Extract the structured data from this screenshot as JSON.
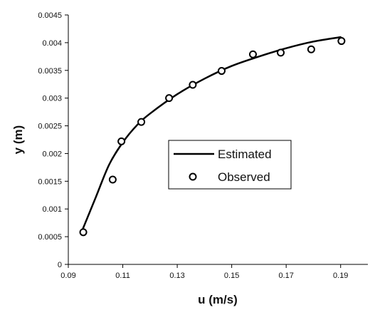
{
  "chart_data": {
    "type": "line",
    "title": "",
    "xlabel": "u (m/s)",
    "ylabel": "y (m)",
    "xlim": [
      0.09,
      0.2
    ],
    "ylim": [
      0,
      0.0045
    ],
    "x_ticks": [
      "0.09",
      "0.11",
      "0.13",
      "0.15",
      "0.17",
      "0.19"
    ],
    "y_ticks": [
      "0",
      "0.0005",
      "0.001",
      "0.0015",
      "0.002",
      "0.0025",
      "0.003",
      "0.0035",
      "0.004",
      "0.0045"
    ],
    "grid": false,
    "legend_position": "center-right",
    "series": [
      {
        "name": "Estimated",
        "kind": "line",
        "color": "#000000",
        "x": [
          0.095,
          0.1,
          0.105,
          0.11,
          0.115,
          0.12,
          0.13,
          0.14,
          0.15,
          0.16,
          0.17,
          0.18,
          0.19
        ],
        "y": [
          0.0006,
          0.0012,
          0.0018,
          0.0022,
          0.0025,
          0.00272,
          0.00307,
          0.00335,
          0.00358,
          0.00375,
          0.0039,
          0.00402,
          0.0041
        ]
      },
      {
        "name": "Observed",
        "kind": "scatter",
        "color": "#000000",
        "x": [
          0.0955,
          0.1063,
          0.1095,
          0.1168,
          0.127,
          0.1357,
          0.1463,
          0.1578,
          0.168,
          0.1792,
          0.1903
        ],
        "y": [
          0.00058,
          0.00153,
          0.00222,
          0.00257,
          0.003,
          0.00324,
          0.00349,
          0.00379,
          0.00382,
          0.00388,
          0.00403
        ]
      }
    ]
  }
}
